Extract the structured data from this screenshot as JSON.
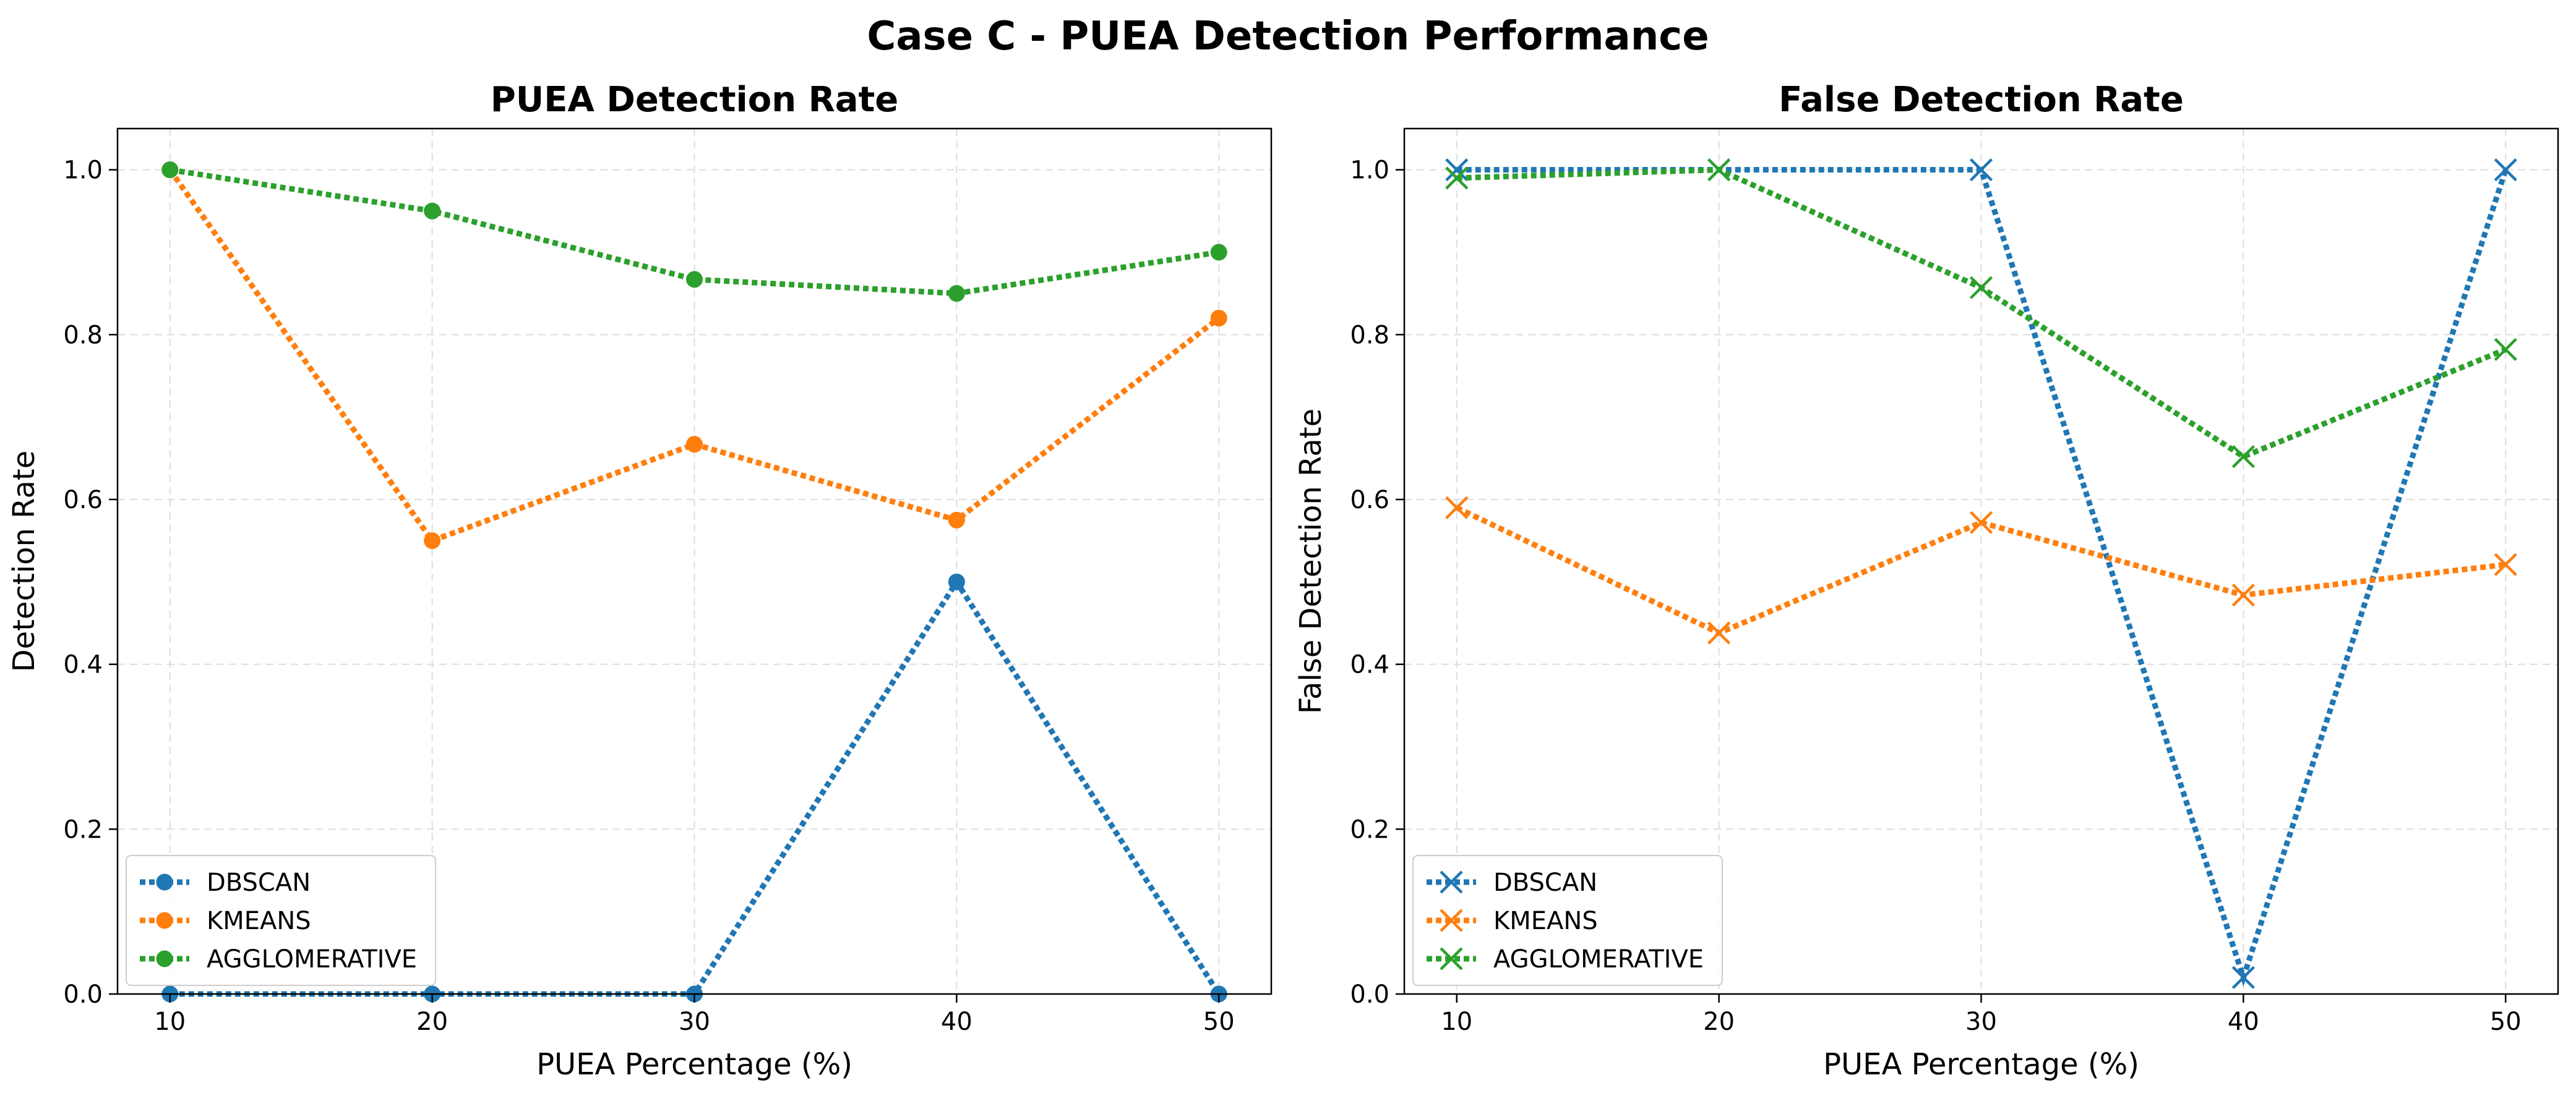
{
  "figure": {
    "title": "Case C - PUEA Detection Performance"
  },
  "colors": {
    "DBSCAN": "#1f77b4",
    "KMEANS": "#ff7f0e",
    "AGGLOMERATIVE": "#2ca02c",
    "grid": "#dddddd",
    "axes": "#000000",
    "legend_border": "#cccccc"
  },
  "chart_data": [
    {
      "type": "line",
      "title": "PUEA Detection Rate",
      "xlabel": "PUEA Percentage (%)",
      "ylabel": "Detection Rate",
      "x": [
        10,
        20,
        30,
        40,
        50
      ],
      "xticks": [
        "10",
        "20",
        "30",
        "40",
        "50"
      ],
      "yticks": [
        "0.0",
        "0.2",
        "0.4",
        "0.6",
        "0.8",
        "1.0"
      ],
      "xlim": [
        8,
        52
      ],
      "ylim": [
        0,
        1.05
      ],
      "grid": true,
      "line_style": "dotted",
      "marker": "circle",
      "legend_position": "lower-left",
      "series": [
        {
          "name": "DBSCAN",
          "values": [
            0.0,
            0.0,
            0.0,
            0.5,
            0.0
          ]
        },
        {
          "name": "KMEANS",
          "values": [
            1.0,
            0.55,
            0.667,
            0.575,
            0.82
          ]
        },
        {
          "name": "AGGLOMERATIVE",
          "values": [
            1.0,
            0.95,
            0.867,
            0.85,
            0.9
          ]
        }
      ]
    },
    {
      "type": "line",
      "title": "False Detection Rate",
      "xlabel": "PUEA Percentage (%)",
      "ylabel": "False Detection Rate",
      "x": [
        10,
        20,
        30,
        40,
        50
      ],
      "xticks": [
        "10",
        "20",
        "30",
        "40",
        "50"
      ],
      "yticks": [
        "0.0",
        "0.2",
        "0.4",
        "0.6",
        "0.8",
        "1.0"
      ],
      "xlim": [
        8,
        52
      ],
      "ylim": [
        0,
        1.05
      ],
      "grid": true,
      "line_style": "dotted",
      "marker": "x",
      "legend_position": "lower-left",
      "series": [
        {
          "name": "DBSCAN",
          "values": [
            1.0,
            1.0,
            1.0,
            0.02,
            1.0
          ]
        },
        {
          "name": "KMEANS",
          "values": [
            0.59,
            0.438,
            0.572,
            0.484,
            0.521
          ]
        },
        {
          "name": "AGGLOMERATIVE",
          "values": [
            0.99,
            1.0,
            0.857,
            0.652,
            0.782
          ]
        }
      ]
    }
  ]
}
